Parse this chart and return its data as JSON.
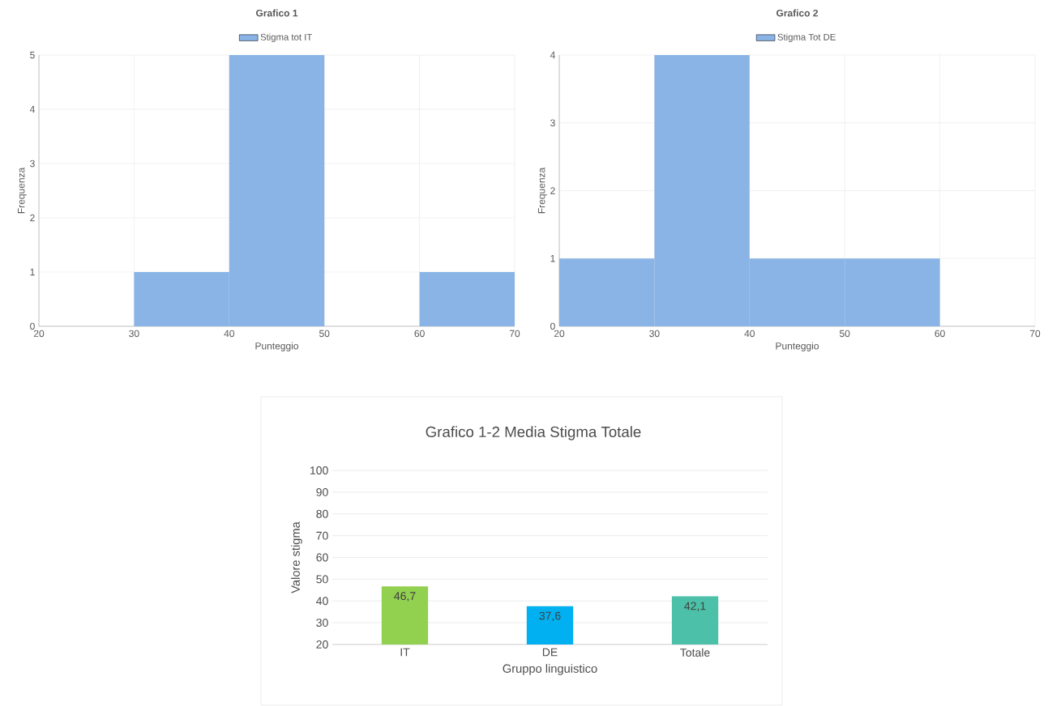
{
  "chart_data": [
    {
      "type": "histogram",
      "title": "Grafico 1",
      "xlabel": "Punteggio",
      "ylabel": "Frequenza",
      "bins": [
        20,
        30,
        40,
        50,
        60,
        70
      ],
      "series": [
        {
          "name": "Stigma tot IT",
          "color": "#8ab4e6",
          "values": [
            0,
            1,
            5,
            0,
            1
          ]
        }
      ],
      "xlim": [
        20,
        70
      ],
      "xticks": [
        20,
        30,
        40,
        50,
        60,
        70
      ],
      "ylim": [
        0,
        5
      ],
      "yticks": [
        0,
        1,
        2,
        3,
        4,
        5
      ],
      "grid": true,
      "legend": "top"
    },
    {
      "type": "histogram",
      "title": "Grafico 2",
      "xlabel": "Punteggio",
      "ylabel": "Frequenza",
      "bins": [
        20,
        30,
        40,
        50,
        60,
        70
      ],
      "series": [
        {
          "name": "Stigma Tot DE",
          "color": "#8ab4e6",
          "values": [
            1,
            4,
            1,
            1,
            0
          ]
        }
      ],
      "xlim": [
        20,
        70
      ],
      "xticks": [
        20,
        30,
        40,
        50,
        60,
        70
      ],
      "ylim": [
        0,
        4
      ],
      "yticks": [
        0,
        1,
        2,
        3,
        4
      ],
      "grid": true,
      "legend": "top"
    },
    {
      "type": "bar",
      "title": "Grafico 1-2 Media Stigma Totale",
      "xlabel": "Gruppo linguistico",
      "ylabel": "Valore stigma",
      "categories": [
        "IT",
        "DE",
        "Totale"
      ],
      "values": [
        46.7,
        37.6,
        42.1
      ],
      "value_labels": [
        "46,7",
        "37,6",
        "42,1"
      ],
      "colors": [
        "#92d050",
        "#00b0f0",
        "#4cc0a8"
      ],
      "ylim": [
        20,
        100
      ],
      "yticks": [
        20,
        30,
        40,
        50,
        60,
        70,
        80,
        90,
        100
      ],
      "grid": "y"
    }
  ]
}
